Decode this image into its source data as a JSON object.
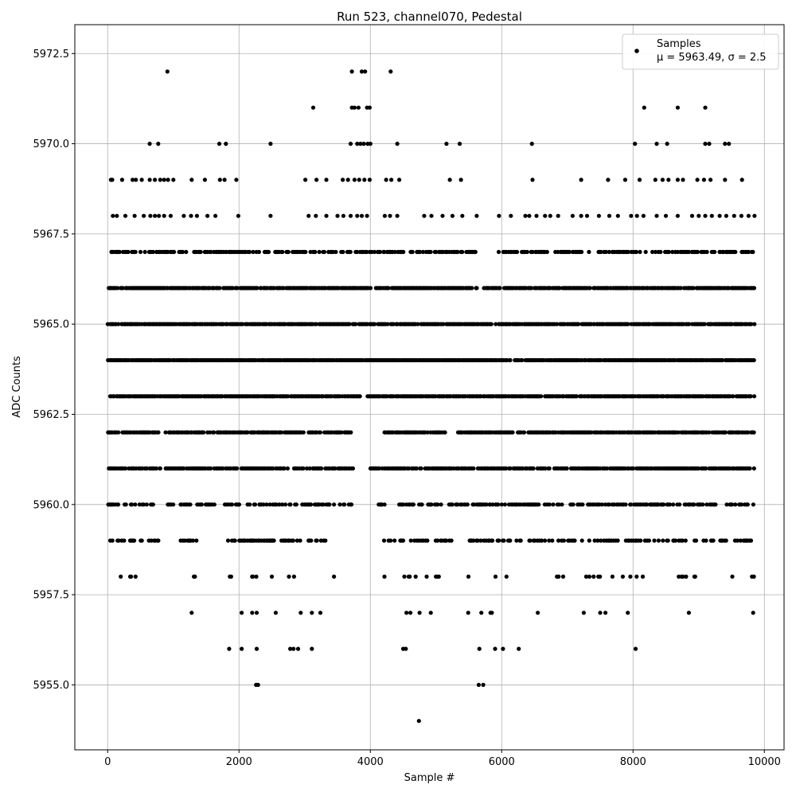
{
  "chart_data": {
    "type": "scatter",
    "title": "Run 523, channel070, Pedestal",
    "xlabel": "Sample #",
    "ylabel": "ADC Counts",
    "xlim": [
      -500,
      10300
    ],
    "ylim": [
      5953.2,
      5973.3
    ],
    "xticks": [
      0,
      2000,
      4000,
      6000,
      8000,
      10000
    ],
    "xtick_labels": [
      "0",
      "2000",
      "4000",
      "6000",
      "8000",
      "10000"
    ],
    "yticks": [
      5955.0,
      5957.5,
      5960.0,
      5962.5,
      5965.0,
      5967.5,
      5970.0,
      5972.5
    ],
    "ytick_labels": [
      "5955.0",
      "5957.5",
      "5960.0",
      "5962.5",
      "5965.0",
      "5967.5",
      "5970.0",
      "5972.5"
    ],
    "grid": true,
    "legend_position": "top-right",
    "legend": {
      "label": "Samples",
      "stats": "μ = 5963.49, σ = 2.5"
    },
    "marker_color": "#000000",
    "n_samples": 9850,
    "series": [
      {
        "name": "Samples",
        "mean": 5963.49,
        "std": 2.5,
        "points": [
          [
            910,
            5972
          ],
          [
            3720,
            5972
          ],
          [
            3870,
            5972
          ],
          [
            3920,
            5972
          ],
          [
            4310,
            5972
          ],
          [
            3130,
            5971
          ],
          [
            3720,
            5971
          ],
          [
            3760,
            5971
          ],
          [
            3820,
            5971
          ],
          [
            3950,
            5971
          ],
          [
            3990,
            5971
          ],
          [
            8170,
            5971
          ],
          [
            8680,
            5971
          ],
          [
            9100,
            5971
          ],
          [
            640,
            5970
          ],
          [
            770,
            5970
          ],
          [
            1700,
            5970
          ],
          [
            1800,
            5970
          ],
          [
            2480,
            5970
          ],
          [
            3700,
            5970
          ],
          [
            3800,
            5970
          ],
          [
            3850,
            5970
          ],
          [
            3900,
            5970
          ],
          [
            3960,
            5970
          ],
          [
            4000,
            5970
          ],
          [
            4410,
            5970
          ],
          [
            5160,
            5970
          ],
          [
            5360,
            5970
          ],
          [
            6460,
            5970
          ],
          [
            8030,
            5970
          ],
          [
            8360,
            5970
          ],
          [
            8520,
            5970
          ],
          [
            9100,
            5970
          ],
          [
            9160,
            5970
          ],
          [
            9400,
            5970
          ],
          [
            9460,
            5970
          ],
          [
            50,
            5969
          ],
          [
            70,
            5969
          ],
          [
            220,
            5969
          ],
          [
            380,
            5969
          ],
          [
            430,
            5969
          ],
          [
            520,
            5969
          ],
          [
            640,
            5969
          ],
          [
            720,
            5969
          ],
          [
            800,
            5969
          ],
          [
            860,
            5969
          ],
          [
            920,
            5969
          ],
          [
            1000,
            5969
          ],
          [
            1280,
            5969
          ],
          [
            1480,
            5969
          ],
          [
            1710,
            5969
          ],
          [
            1780,
            5969
          ],
          [
            1960,
            5969
          ],
          [
            3010,
            5969
          ],
          [
            3180,
            5969
          ],
          [
            3330,
            5969
          ],
          [
            3580,
            5969
          ],
          [
            3660,
            5969
          ],
          [
            3760,
            5969
          ],
          [
            3830,
            5969
          ],
          [
            3910,
            5969
          ],
          [
            3990,
            5969
          ],
          [
            4240,
            5969
          ],
          [
            4320,
            5969
          ],
          [
            4440,
            5969
          ],
          [
            5210,
            5969
          ],
          [
            5380,
            5969
          ],
          [
            6470,
            5969
          ],
          [
            7210,
            5969
          ],
          [
            7620,
            5969
          ],
          [
            7880,
            5969
          ],
          [
            8100,
            5969
          ],
          [
            8340,
            5969
          ],
          [
            8450,
            5969
          ],
          [
            8540,
            5969
          ],
          [
            8680,
            5969
          ],
          [
            8760,
            5969
          ],
          [
            8980,
            5969
          ],
          [
            9080,
            5969
          ],
          [
            9180,
            5969
          ],
          [
            9400,
            5969
          ],
          [
            9660,
            5969
          ],
          [
            80,
            5968
          ],
          [
            140,
            5968
          ],
          [
            270,
            5968
          ],
          [
            410,
            5968
          ],
          [
            550,
            5968
          ],
          [
            650,
            5968
          ],
          [
            720,
            5968
          ],
          [
            780,
            5968
          ],
          [
            860,
            5968
          ],
          [
            960,
            5968
          ],
          [
            1160,
            5968
          ],
          [
            1270,
            5968
          ],
          [
            1360,
            5968
          ],
          [
            1520,
            5968
          ],
          [
            1640,
            5968
          ],
          [
            1990,
            5968
          ],
          [
            2480,
            5968
          ],
          [
            3060,
            5968
          ],
          [
            3170,
            5968
          ],
          [
            3330,
            5968
          ],
          [
            3500,
            5968
          ],
          [
            3590,
            5968
          ],
          [
            3700,
            5968
          ],
          [
            3800,
            5968
          ],
          [
            3870,
            5968
          ],
          [
            3950,
            5968
          ],
          [
            4220,
            5968
          ],
          [
            4300,
            5968
          ],
          [
            4410,
            5968
          ],
          [
            4820,
            5968
          ],
          [
            4930,
            5968
          ],
          [
            5100,
            5968
          ],
          [
            5250,
            5968
          ],
          [
            5400,
            5968
          ],
          [
            5620,
            5968
          ],
          [
            5960,
            5968
          ],
          [
            6140,
            5968
          ],
          [
            6360,
            5968
          ],
          [
            6420,
            5968
          ],
          [
            6530,
            5968
          ],
          [
            6660,
            5968
          ],
          [
            6740,
            5968
          ],
          [
            6860,
            5968
          ],
          [
            7080,
            5968
          ],
          [
            7210,
            5968
          ],
          [
            7300,
            5968
          ],
          [
            7480,
            5968
          ],
          [
            7640,
            5968
          ],
          [
            7770,
            5968
          ],
          [
            7970,
            5968
          ],
          [
            8060,
            5968
          ],
          [
            8160,
            5968
          ],
          [
            8360,
            5968
          ],
          [
            8500,
            5968
          ],
          [
            8680,
            5968
          ],
          [
            8900,
            5968
          ],
          [
            9000,
            5968
          ],
          [
            9100,
            5968
          ],
          [
            9200,
            5968
          ],
          [
            9320,
            5968
          ],
          [
            9420,
            5968
          ],
          [
            9540,
            5968
          ],
          [
            9650,
            5968
          ],
          [
            9760,
            5968
          ],
          [
            9850,
            5968
          ],
          [
            1280,
            5957
          ],
          [
            2040,
            5957
          ],
          [
            2200,
            5957
          ],
          [
            2270,
            5957
          ],
          [
            2560,
            5957
          ],
          [
            2940,
            5957
          ],
          [
            3110,
            5957
          ],
          [
            3240,
            5957
          ],
          [
            4550,
            5957
          ],
          [
            4610,
            5957
          ],
          [
            4750,
            5957
          ],
          [
            4920,
            5957
          ],
          [
            5490,
            5957
          ],
          [
            5690,
            5957
          ],
          [
            5830,
            5957
          ],
          [
            5850,
            5957
          ],
          [
            6550,
            5957
          ],
          [
            7250,
            5957
          ],
          [
            7500,
            5957
          ],
          [
            7580,
            5957
          ],
          [
            7920,
            5957
          ],
          [
            8850,
            5957
          ],
          [
            9830,
            5957
          ],
          [
            1850,
            5956
          ],
          [
            2040,
            5956
          ],
          [
            2270,
            5956
          ],
          [
            2780,
            5956
          ],
          [
            2830,
            5956
          ],
          [
            2900,
            5956
          ],
          [
            3110,
            5956
          ],
          [
            4500,
            5956
          ],
          [
            4540,
            5956
          ],
          [
            5660,
            5956
          ],
          [
            5900,
            5956
          ],
          [
            6020,
            5956
          ],
          [
            6260,
            5956
          ],
          [
            8040,
            5956
          ],
          [
            2260,
            5955
          ],
          [
            2290,
            5955
          ],
          [
            5650,
            5955
          ],
          [
            5720,
            5955
          ],
          [
            4740,
            5954
          ]
        ],
        "bands": [
          {
            "y": 5967,
            "gaps": [
              [
                3700,
                3760
              ],
              [
                5620,
                5950
              ],
              [
                6740,
                6780
              ],
              [
                7250,
                7290
              ],
              [
                9560,
                9640
              ]
            ],
            "density": 0.55
          },
          {
            "y": 5966,
            "gaps": [
              [
                5640,
                5720
              ],
              [
                6460,
                6480
              ]
            ],
            "density": 0.8
          },
          {
            "y": 5965,
            "gaps": [
              [
                5850,
                5900
              ]
            ],
            "density": 0.85
          },
          {
            "y": 5964,
            "gaps": [],
            "density": 0.85
          },
          {
            "y": 5963,
            "gaps": [
              [
                3870,
                3950
              ]
            ],
            "density": 0.85
          },
          {
            "y": 5962,
            "gaps": [
              [
                770,
                830
              ],
              [
                3700,
                4200
              ],
              [
                5140,
                5300
              ]
            ],
            "density": 0.75
          },
          {
            "y": 5961,
            "gaps": [
              [
                3730,
                3990
              ],
              [
                7000,
                7050
              ]
            ],
            "density": 0.7
          },
          {
            "y": 5960,
            "gaps": [
              [
                700,
                900
              ],
              [
                1000,
                1100
              ],
              [
                1640,
                1760
              ],
              [
                3720,
                4120
              ],
              [
                4230,
                4400
              ],
              [
                5080,
                5170
              ]
            ],
            "density": 0.5
          },
          {
            "y": 5959,
            "gaps": [
              [
                780,
                1100
              ],
              [
                1400,
                1750
              ],
              [
                3380,
                3760
              ],
              [
                3820,
                4180
              ],
              [
                4500,
                4520
              ],
              [
                5240,
                5340
              ]
            ],
            "density": 0.35
          },
          {
            "y": 5958,
            "gaps": [
              [
                600,
                1200
              ],
              [
                1500,
                1800
              ],
              [
                2960,
                3200
              ],
              [
                3620,
                4180
              ],
              [
                4240,
                4440
              ],
              [
                5060,
                5300
              ],
              [
                6300,
                6700
              ],
              [
                8200,
                8500
              ]
            ],
            "density": 0.15
          }
        ]
      }
    ]
  }
}
